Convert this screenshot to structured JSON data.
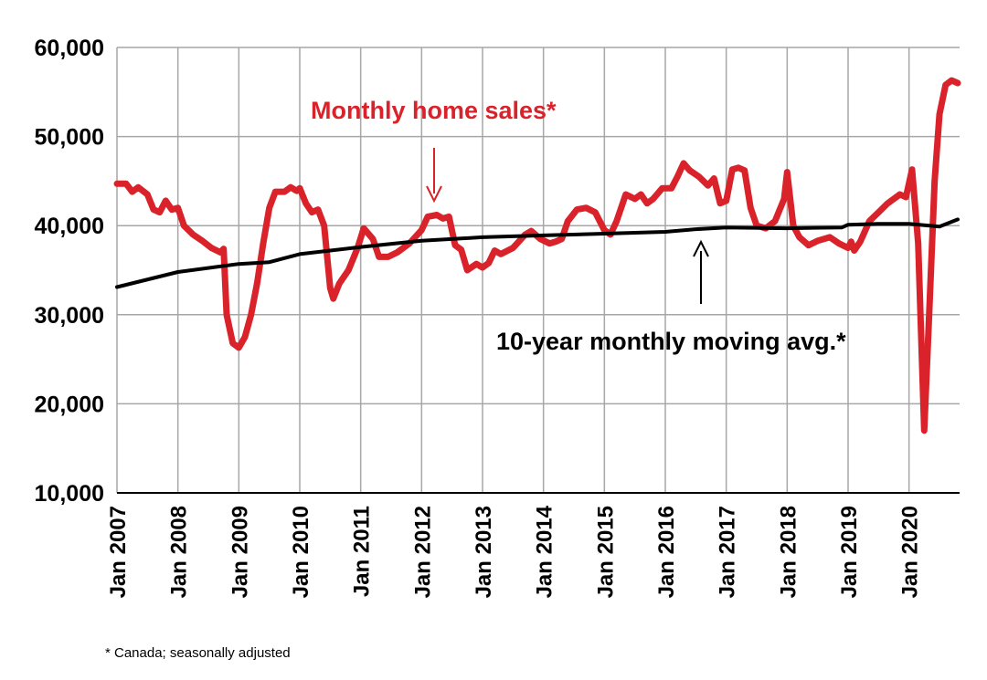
{
  "chart_data": {
    "type": "line",
    "annotations": [
      "Monthly home sales*",
      "10-year monthly moving avg.*"
    ],
    "footnote": "* Canada; seasonally adjusted",
    "xlim": [
      2007,
      2020.83
    ],
    "ylim": [
      10000,
      60000
    ],
    "yticks": [
      {
        "value": 10000,
        "label": "10,000"
      },
      {
        "value": 20000,
        "label": "20,000"
      },
      {
        "value": 30000,
        "label": "30,000"
      },
      {
        "value": 40000,
        "label": "40,000"
      },
      {
        "value": 50000,
        "label": "50,000"
      },
      {
        "value": 60000,
        "label": "60,000"
      }
    ],
    "xticks": [
      {
        "value": 2007,
        "label": "Jan 2007"
      },
      {
        "value": 2008,
        "label": "Jan 2008"
      },
      {
        "value": 2009,
        "label": "Jan 2009"
      },
      {
        "value": 2010,
        "label": "Jan 2010"
      },
      {
        "value": 2011,
        "label": "Jan 2011"
      },
      {
        "value": 2012,
        "label": "Jan 2012"
      },
      {
        "value": 2013,
        "label": "Jan 2013"
      },
      {
        "value": 2014,
        "label": "Jan 2014"
      },
      {
        "value": 2015,
        "label": "Jan 2015"
      },
      {
        "value": 2016,
        "label": "Jan 2016"
      },
      {
        "value": 2017,
        "label": "Jan 2017"
      },
      {
        "value": 2018,
        "label": "Jan 2018"
      },
      {
        "value": 2019,
        "label": "Jan 2019"
      },
      {
        "value": 2020,
        "label": "Jan 2020"
      }
    ],
    "grid": true,
    "series": [
      {
        "color": "#d9222a",
        "width": 7,
        "x": [
          2007.0,
          2007.15,
          2007.25,
          2007.35,
          2007.5,
          2007.6,
          2007.7,
          2007.8,
          2007.9,
          2008.0,
          2008.1,
          2008.25,
          2008.4,
          2008.55,
          2008.7,
          2008.75,
          2008.8,
          2008.9,
          2009.0,
          2009.1,
          2009.2,
          2009.3,
          2009.4,
          2009.5,
          2009.6,
          2009.75,
          2009.85,
          2009.95,
          2010.0,
          2010.1,
          2010.2,
          2010.3,
          2010.4,
          2010.5,
          2010.55,
          2010.65,
          2010.8,
          2010.95,
          2011.05,
          2011.2,
          2011.3,
          2011.45,
          2011.6,
          2011.8,
          2012.0,
          2012.1,
          2012.25,
          2012.35,
          2012.45,
          2012.55,
          2012.65,
          2012.75,
          2012.9,
          2013.0,
          2013.1,
          2013.2,
          2013.3,
          2013.5,
          2013.7,
          2013.8,
          2013.95,
          2014.1,
          2014.2,
          2014.3,
          2014.4,
          2014.55,
          2014.7,
          2014.85,
          2015.0,
          2015.1,
          2015.2,
          2015.35,
          2015.5,
          2015.6,
          2015.7,
          2015.8,
          2015.95,
          2016.1,
          2016.2,
          2016.3,
          2016.4,
          2016.55,
          2016.7,
          2016.8,
          2016.9,
          2017.0,
          2017.1,
          2017.2,
          2017.3,
          2017.4,
          2017.5,
          2017.65,
          2017.8,
          2017.95,
          2018.0,
          2018.1,
          2018.2,
          2018.35,
          2018.5,
          2018.7,
          2018.85,
          2019.0,
          2019.05,
          2019.1,
          2019.2,
          2019.35,
          2019.5,
          2019.65,
          2019.85,
          2019.95,
          2020.05,
          2020.15,
          2020.25,
          2020.33,
          2020.42,
          2020.5,
          2020.6,
          2020.7,
          2020.8
        ],
        "values": [
          44700,
          44700,
          43800,
          44300,
          43500,
          41800,
          41500,
          42800,
          41800,
          42000,
          40000,
          39000,
          38300,
          37500,
          37000,
          37400,
          30000,
          26800,
          26300,
          27500,
          30000,
          33500,
          38000,
          42000,
          43800,
          43800,
          44300,
          43900,
          44200,
          42500,
          41500,
          41800,
          40000,
          33000,
          31800,
          33500,
          35000,
          37500,
          39700,
          38500,
          36500,
          36500,
          37000,
          38000,
          39500,
          41000,
          41200,
          40800,
          41000,
          37800,
          37300,
          35000,
          35700,
          35300,
          35800,
          37200,
          36800,
          37500,
          39000,
          39400,
          38500,
          38000,
          38200,
          38500,
          40500,
          41800,
          42000,
          41500,
          39500,
          39000,
          40500,
          43500,
          43000,
          43500,
          42500,
          43000,
          44200,
          44200,
          45500,
          47000,
          46200,
          45500,
          44500,
          45300,
          42500,
          42800,
          46300,
          46500,
          46200,
          42000,
          40000,
          39700,
          40500,
          43000,
          46000,
          40000,
          38700,
          37800,
          38300,
          38700,
          38000,
          37500,
          38200,
          37200,
          38200,
          40500,
          41500,
          42500,
          43500,
          43200,
          46300,
          38000,
          17000,
          30000,
          45000,
          52500,
          55800,
          56300,
          56000
        ]
      },
      {
        "color": "#000000",
        "width": 4,
        "x": [
          2007.0,
          2008.0,
          2009.0,
          2009.5,
          2010.0,
          2011.0,
          2012.0,
          2013.0,
          2014.0,
          2015.0,
          2016.0,
          2016.5,
          2017.0,
          2018.0,
          2018.9,
          2019.0,
          2019.5,
          2020.0,
          2020.5,
          2020.8
        ],
        "values": [
          33100,
          34800,
          35700,
          35900,
          36800,
          37600,
          38300,
          38700,
          38900,
          39100,
          39300,
          39600,
          39800,
          39700,
          39800,
          40100,
          40200,
          40200,
          39900,
          40700
        ]
      }
    ]
  }
}
